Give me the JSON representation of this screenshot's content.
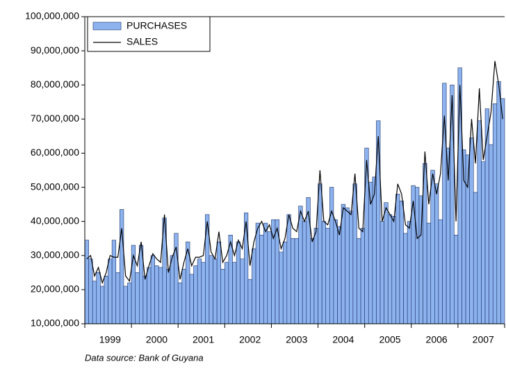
{
  "chart_data": {
    "type": "bar-line",
    "categories": [
      null,
      null,
      null,
      null,
      null,
      null,
      "1999",
      null,
      null,
      null,
      null,
      null,
      null,
      null,
      null,
      null,
      null,
      null,
      "2000",
      null,
      null,
      null,
      null,
      null,
      null,
      null,
      null,
      null,
      null,
      null,
      "2001",
      null,
      null,
      null,
      null,
      null,
      null,
      null,
      null,
      null,
      null,
      null,
      "2002",
      null,
      null,
      null,
      null,
      null,
      null,
      null,
      null,
      null,
      null,
      null,
      "2003",
      null,
      null,
      null,
      null,
      null,
      null,
      null,
      null,
      null,
      null,
      null,
      "2004",
      null,
      null,
      null,
      null,
      null,
      null,
      null,
      null,
      null,
      null,
      null,
      "2005",
      null,
      null,
      null,
      null,
      null,
      null,
      null,
      null,
      null,
      null,
      null,
      "2006",
      null,
      null,
      null,
      null,
      null,
      null,
      null,
      null,
      null,
      null,
      null,
      "2007",
      null,
      null,
      null,
      null,
      null
    ],
    "series": [
      {
        "name": "PURCHASES",
        "color": "#8db3ee",
        "values": [
          34500000,
          29000000,
          22500000,
          25000000,
          21000000,
          24000000,
          29000000,
          34500000,
          25000000,
          43500000,
          21000000,
          22000000,
          33000000,
          25000000,
          33000000,
          24000000,
          26500000,
          30000000,
          27000000,
          26500000,
          41000000,
          26000000,
          30000000,
          36500000,
          22000000,
          26000000,
          34000000,
          24500000,
          27000000,
          29000000,
          28000000,
          42000000,
          30000000,
          29000000,
          34000000,
          26000000,
          28000000,
          36000000,
          28000000,
          34000000,
          29000000,
          42500000,
          23000000,
          32000000,
          39500000,
          36000000,
          39500000,
          37000000,
          40500000,
          40500000,
          31000000,
          34000000,
          42000000,
          35000000,
          35000000,
          44500000,
          40000000,
          47000000,
          35000000,
          38000000,
          51000000,
          40000000,
          38000000,
          50000000,
          40500000,
          38500000,
          45000000,
          44000000,
          43000000,
          51000000,
          35000000,
          38000000,
          61500000,
          51500000,
          53000000,
          69500000,
          40000000,
          45500000,
          42000000,
          41500000,
          48000000,
          46000000,
          36500000,
          40000000,
          50500000,
          50000000,
          47500000,
          57000000,
          39500000,
          55000000,
          51000000,
          40500000,
          80500000,
          61500000,
          80000000,
          36000000,
          85000000,
          61000000,
          59500000,
          64500000,
          48500000,
          69500000,
          57500000,
          73000000,
          62500000,
          74500000,
          81000000,
          76000000
        ]
      },
      {
        "name": "SALES",
        "color": "#000000",
        "values": [
          29000000,
          30000000,
          24000000,
          26500000,
          22000000,
          25000000,
          30000000,
          29500000,
          29500000,
          38000000,
          24000000,
          22500000,
          30000000,
          27000000,
          34000000,
          23000000,
          27000000,
          30500000,
          29000000,
          28000000,
          42000000,
          25000000,
          29500000,
          32500000,
          23000000,
          28000000,
          32000000,
          27000000,
          29500000,
          29500000,
          30000000,
          40000000,
          31000000,
          29000000,
          37000000,
          28000000,
          30000000,
          34000000,
          30000000,
          34500000,
          32000000,
          40000000,
          27000000,
          34000000,
          38000000,
          40000000,
          37000000,
          39000000,
          35000000,
          38000000,
          32000000,
          35000000,
          42000000,
          38000000,
          37000000,
          43000000,
          40000000,
          43000000,
          34000000,
          37000000,
          55000000,
          40000000,
          39000000,
          43000000,
          40000000,
          36000000,
          44000000,
          43000000,
          42000000,
          54000000,
          38000000,
          37000000,
          58000000,
          45000000,
          48000000,
          65000000,
          40000000,
          44000000,
          42000000,
          40000000,
          51000000,
          48000000,
          39000000,
          38000000,
          46000000,
          35000000,
          36000000,
          60500000,
          45000000,
          54000000,
          48000000,
          54000000,
          71000000,
          52000000,
          77000000,
          40000000,
          80000000,
          52000000,
          50000000,
          70000000,
          57000000,
          79000000,
          58000000,
          65000000,
          72000000,
          87000000,
          80000000,
          70000000
        ]
      }
    ],
    "ylim": [
      10000000,
      100000000
    ],
    "yticks": [
      {
        "value": 10000000,
        "label": "10,000,000"
      },
      {
        "value": 20000000,
        "label": "20,000,000"
      },
      {
        "value": 30000000,
        "label": "30,000,000"
      },
      {
        "value": 40000000,
        "label": "40,000,000"
      },
      {
        "value": 50000000,
        "label": "50,000,000"
      },
      {
        "value": 60000000,
        "label": "60,000,000"
      },
      {
        "value": 70000000,
        "label": "70,000,000"
      },
      {
        "value": 80000000,
        "label": "80,000,000"
      },
      {
        "value": 90000000,
        "label": "90,000,000"
      },
      {
        "value": 100000000,
        "label": "100,000,000"
      }
    ],
    "legend": "top-left",
    "source": "Data source: Bank of Guyana"
  }
}
